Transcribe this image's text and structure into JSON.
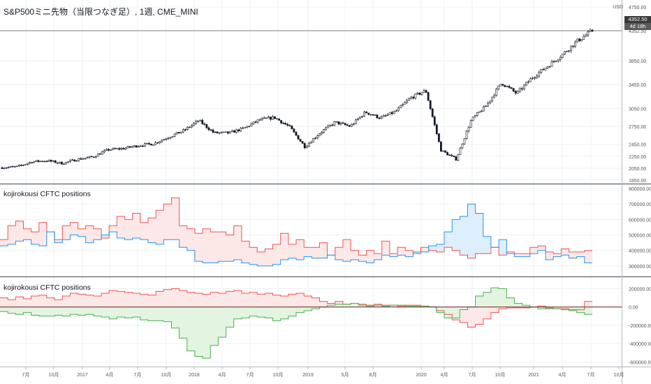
{
  "window": {
    "title": "S&P500ミニ先物（当限つなぎ足）, 1週, CME_MINI",
    "unit": "USD"
  },
  "price_badge": {
    "value": "4352.50",
    "countdown": "4d 18h"
  },
  "panes": [
    {
      "title": ""
    },
    {
      "title": "kojirokousi CFTC positions"
    },
    {
      "title": "kojirokousi CFTC positions"
    }
  ],
  "colors": {
    "up": "#ffffff",
    "down": "#131722",
    "grid": "#eef0f3",
    "red_line": "#ef5350",
    "red_fill": "#fde8e8",
    "blue_line": "#2196f3",
    "blue_fill": "#ddeefd",
    "green_line": "#4caf50",
    "green_fill": "#e3f4e1",
    "zero_line": "#6d1f1f"
  },
  "chart_data": [
    {
      "type": "candlestick",
      "timeframe": "1週",
      "ylim": [
        1850,
        4750
      ],
      "y_ticks": [
        "4750.00",
        "4352.50",
        "3850.00",
        "3450.00",
        "3050.00",
        "2750.00",
        "2450.00",
        "2250.00",
        "2050.00",
        "1850.00"
      ],
      "series_close": [
        {
          "x": "2016-05",
          "y": 2060
        },
        {
          "x": "2016-06",
          "y": 2075
        },
        {
          "x": "2016-07",
          "y": 2160
        },
        {
          "x": "2016-08",
          "y": 2175
        },
        {
          "x": "2016-10",
          "y": 2130
        },
        {
          "x": "2016-11",
          "y": 2200
        },
        {
          "x": "2016-12",
          "y": 2240
        },
        {
          "x": "2017-02",
          "y": 2360
        },
        {
          "x": "2017-04",
          "y": 2380
        },
        {
          "x": "2017-06",
          "y": 2430
        },
        {
          "x": "2017-08",
          "y": 2460
        },
        {
          "x": "2017-10",
          "y": 2570
        },
        {
          "x": "2017-12",
          "y": 2680
        },
        {
          "x": "2018-01",
          "y": 2850
        },
        {
          "x": "2018-02",
          "y": 2640
        },
        {
          "x": "2018-04",
          "y": 2640
        },
        {
          "x": "2018-06",
          "y": 2720
        },
        {
          "x": "2018-08",
          "y": 2860
        },
        {
          "x": "2018-10",
          "y": 2900
        },
        {
          "x": "2018-11",
          "y": 2740
        },
        {
          "x": "2018-12",
          "y": 2410
        },
        {
          "x": "2019-01",
          "y": 2640
        },
        {
          "x": "2019-03",
          "y": 2820
        },
        {
          "x": "2019-05",
          "y": 2750
        },
        {
          "x": "2019-07",
          "y": 2990
        },
        {
          "x": "2019-08",
          "y": 2890
        },
        {
          "x": "2019-10",
          "y": 3000
        },
        {
          "x": "2019-12",
          "y": 3230
        },
        {
          "x": "2020-02",
          "y": 3350
        },
        {
          "x": "2020-03",
          "y": 2350
        },
        {
          "x": "2020-03b",
          "y": 2200
        },
        {
          "x": "2020-04",
          "y": 2860
        },
        {
          "x": "2020-06",
          "y": 3100
        },
        {
          "x": "2020-08",
          "y": 3480
        },
        {
          "x": "2020-10",
          "y": 3300
        },
        {
          "x": "2020-11",
          "y": 3560
        },
        {
          "x": "2021-01",
          "y": 3750
        },
        {
          "x": "2021-03",
          "y": 3950
        },
        {
          "x": "2021-05",
          "y": 4180
        },
        {
          "x": "2021-07",
          "y": 4352.5
        }
      ]
    },
    {
      "type": "line",
      "title": "kojirokousi CFTC positions",
      "ylim": [
        250000,
        800000
      ],
      "y_ticks": [
        "800000.00",
        "700000.00",
        "600000.00",
        "500000.00",
        "400000.00",
        "300000.00"
      ],
      "series": [
        {
          "color": "red",
          "values": [
            470,
            560,
            590,
            540,
            520,
            580,
            520,
            470,
            560,
            580,
            540,
            560,
            540,
            480,
            560,
            620,
            600,
            640,
            580,
            610,
            660,
            700,
            740,
            560,
            540,
            510,
            540,
            520,
            520,
            500,
            560,
            460,
            420,
            390,
            410,
            440,
            510,
            440,
            470,
            420,
            420,
            450,
            370,
            420,
            470,
            400,
            370,
            400,
            380,
            460,
            380,
            420,
            400,
            380,
            420,
            400,
            390,
            420,
            400,
            370,
            350,
            380,
            380,
            420,
            370,
            390,
            380,
            380,
            420,
            430,
            390,
            380,
            410,
            390,
            390,
            400
          ]
        },
        {
          "color": "blue",
          "values": [
            430,
            440,
            460,
            470,
            440,
            430,
            520,
            450,
            470,
            500,
            490,
            450,
            470,
            500,
            520,
            480,
            470,
            480,
            470,
            450,
            440,
            470,
            470,
            420,
            400,
            330,
            320,
            320,
            330,
            330,
            340,
            320,
            310,
            300,
            300,
            310,
            340,
            350,
            340,
            360,
            350,
            350,
            370,
            340,
            330,
            340,
            330,
            320,
            340,
            370,
            360,
            370,
            360,
            390,
            390,
            430,
            440,
            520,
            600,
            620,
            700,
            640,
            490,
            420,
            470,
            380,
            360,
            360,
            380,
            400,
            340,
            360,
            370,
            350,
            360,
            320
          ]
        }
      ]
    },
    {
      "type": "line",
      "title": "kojirokousi CFTC positions",
      "ylim": [
        -620000,
        280000
      ],
      "y_ticks": [
        "200000.00",
        "0.00",
        "-200000.00",
        "-400000.00",
        "-600000.00"
      ],
      "series": [
        {
          "color": "red",
          "values": [
            100,
            80,
            110,
            90,
            120,
            130,
            100,
            80,
            120,
            150,
            140,
            130,
            120,
            150,
            180,
            170,
            160,
            150,
            140,
            130,
            170,
            190,
            200,
            180,
            160,
            150,
            140,
            160,
            150,
            170,
            180,
            150,
            160,
            140,
            150,
            130,
            120,
            140,
            150,
            120,
            100,
            60,
            40,
            60,
            30,
            40,
            30,
            20,
            30,
            20,
            20,
            10,
            20,
            20,
            10,
            0,
            -40,
            -80,
            -140,
            -170,
            -220,
            -190,
            -130,
            -60,
            -20,
            -10,
            -10,
            -10,
            0,
            10,
            -10,
            -20,
            -20,
            -30,
            -30,
            60
          ]
        },
        {
          "color": "green",
          "values": [
            -50,
            -70,
            -80,
            -60,
            -90,
            -100,
            -100,
            -90,
            -100,
            -80,
            -90,
            -80,
            -100,
            -110,
            -130,
            -110,
            -120,
            -110,
            -140,
            -150,
            -150,
            -160,
            -230,
            -340,
            -480,
            -540,
            -560,
            -420,
            -330,
            -220,
            -130,
            -120,
            -100,
            -110,
            -120,
            -150,
            -130,
            -100,
            -60,
            -40,
            -20,
            0,
            20,
            30,
            30,
            40,
            20,
            10,
            20,
            10,
            20,
            20,
            10,
            10,
            10,
            0,
            -60,
            -120,
            -120,
            -30,
            0,
            120,
            160,
            210,
            200,
            100,
            40,
            20,
            0,
            -20,
            -20,
            -20,
            -30,
            -40,
            -60,
            -80
          ]
        }
      ]
    }
  ],
  "x_axis": {
    "labels": [
      "7月",
      "10月",
      "2017",
      "4月",
      "7月",
      "10月",
      "2018",
      "4月",
      "7月",
      "10月",
      "2019",
      "5月",
      "8月",
      "2020",
      "4月",
      "7月",
      "10月",
      "2021",
      "4月",
      "7月",
      "10月"
    ]
  }
}
